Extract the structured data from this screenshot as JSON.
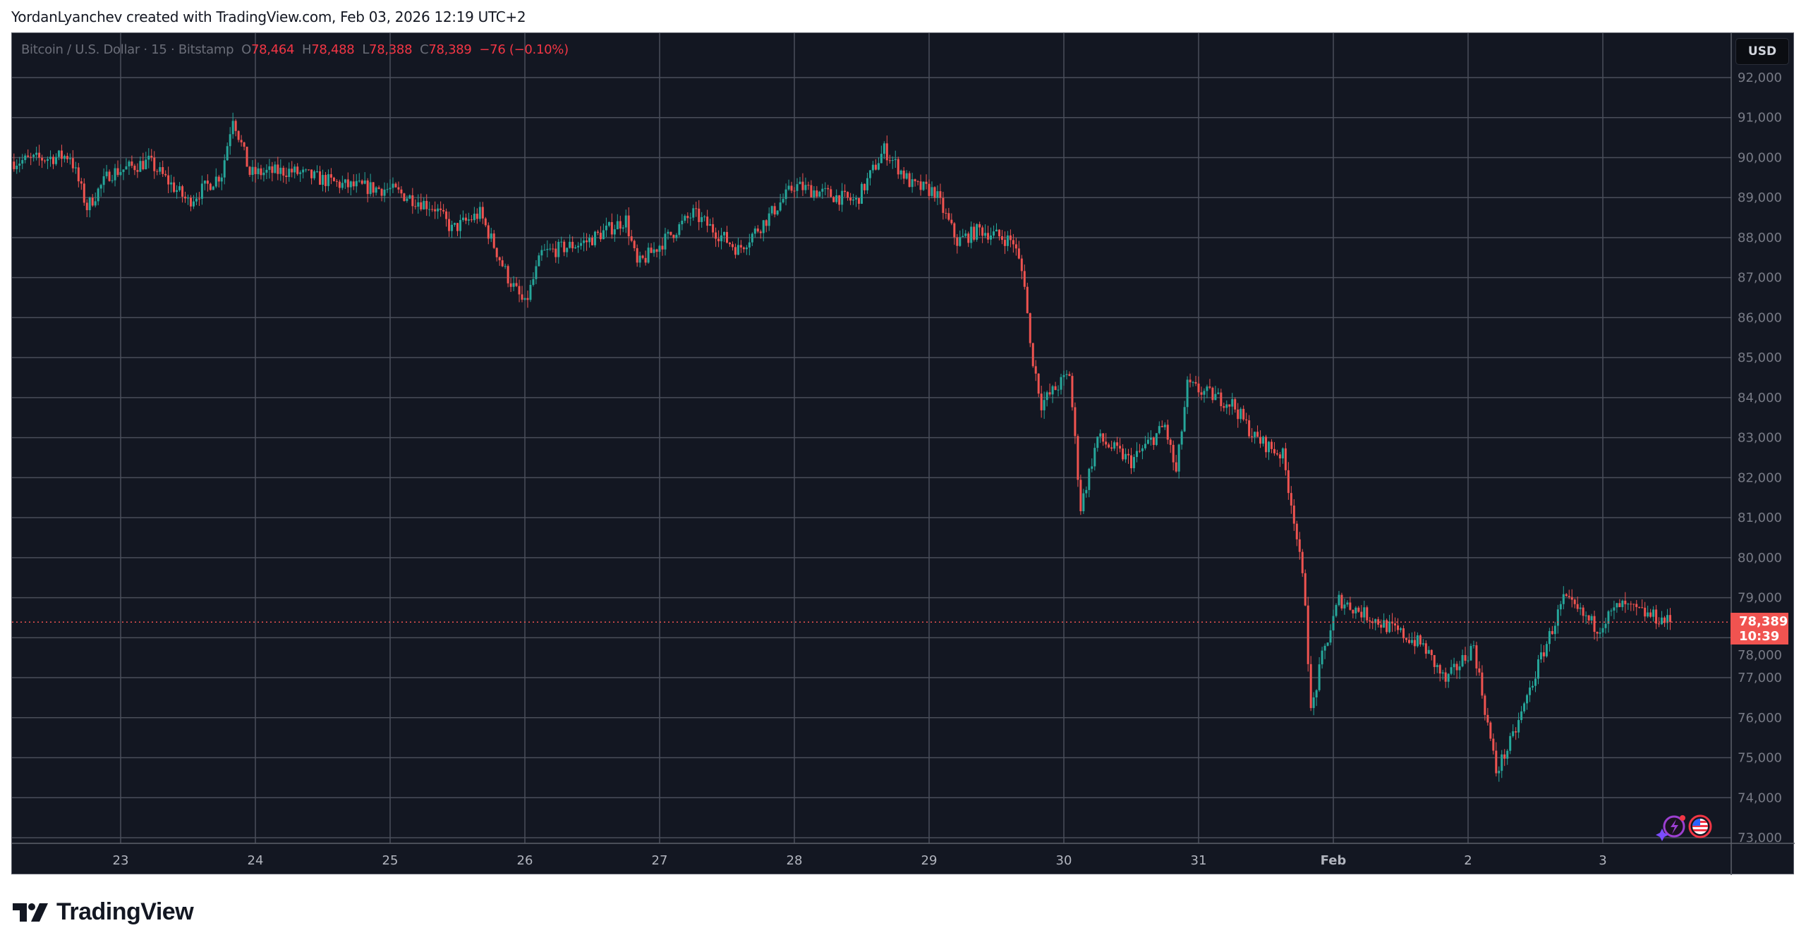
{
  "credit": "YordanLyanchev created with TradingView.com, Feb 03, 2026 12:19 UTC+2",
  "legend": {
    "symbol": "Bitcoin / U.S. Dollar · 15 · Bitstamp",
    "o_label": "O",
    "o": "78,464",
    "h_label": "H",
    "h": "78,488",
    "l_label": "L",
    "l": "78,388",
    "c_label": "C",
    "c": "78,389",
    "change": "−76 (−0.10%)"
  },
  "currency_button": "USD",
  "last_price": {
    "value": "78,389",
    "countdown": "10:39"
  },
  "logo_text": "TradingView",
  "colors": {
    "background": "#131722",
    "up": "#26a69a",
    "down": "#ef5350",
    "grid": "#434651",
    "axis_text": "#787b86"
  },
  "icons": [
    "lightning-sparkle-icon",
    "us-flag-icon"
  ],
  "chart_data": {
    "type": "candlestick",
    "interval": "15",
    "ylim": [
      73000,
      92000
    ],
    "y_ticks": [
      "92,000",
      "91,000",
      "90,000",
      "89,000",
      "88,000",
      "87,000",
      "86,000",
      "85,000",
      "84,000",
      "83,000",
      "82,000",
      "81,000",
      "80,000",
      "79,000",
      "78,000",
      "77,000",
      "76,000",
      "75,000",
      "74,000",
      "73,000"
    ],
    "x_ticks": [
      "23",
      "24",
      "25",
      "26",
      "27",
      "28",
      "29",
      "30",
      "31",
      "Feb",
      "2",
      "3"
    ],
    "grid": true,
    "approx_price_path": [
      [
        "2026-01-22T05:00",
        89900
      ],
      [
        "2026-01-22T15:00",
        90050
      ],
      [
        "2026-01-22T18:00",
        88750
      ],
      [
        "2026-01-22T22:00",
        89600
      ],
      [
        "2026-01-23T05:00",
        89900
      ],
      [
        "2026-01-23T12:00",
        88900
      ],
      [
        "2026-01-23T18:00",
        89600
      ],
      [
        "2026-01-23T20:00",
        91050
      ],
      [
        "2026-01-23T23:00",
        89600
      ],
      [
        "2026-01-24T06:00",
        89670
      ],
      [
        "2026-01-24T16:00",
        89300
      ],
      [
        "2026-01-25T00:00",
        89200
      ],
      [
        "2026-01-25T08:00",
        88750
      ],
      [
        "2026-01-25T11:00",
        88200
      ],
      [
        "2026-01-25T16:00",
        88600
      ],
      [
        "2026-01-25T21:00",
        87000
      ],
      [
        "2026-01-26T00:00",
        86300
      ],
      [
        "2026-01-26T03:00",
        87600
      ],
      [
        "2026-01-26T11:00",
        87900
      ],
      [
        "2026-01-26T18:00",
        88450
      ],
      [
        "2026-01-26T20:00",
        87300
      ],
      [
        "2026-01-27T06:00",
        88600
      ],
      [
        "2026-01-27T14:00",
        87700
      ],
      [
        "2026-01-27T19:00",
        88450
      ],
      [
        "2026-01-28T00:00",
        89300
      ],
      [
        "2026-01-28T11:00",
        88900
      ],
      [
        "2026-01-28T16:00",
        90200
      ],
      [
        "2026-01-28T21:00",
        89300
      ],
      [
        "2026-01-29T01:00",
        89150
      ],
      [
        "2026-01-29T05:00",
        87900
      ],
      [
        "2026-01-29T09:00",
        88200
      ],
      [
        "2026-01-29T15:00",
        87900
      ],
      [
        "2026-01-29T17:00",
        86900
      ],
      [
        "2026-01-29T18:00",
        85300
      ],
      [
        "2026-01-29T20:00",
        83850
      ],
      [
        "2026-01-30T01:00",
        84600
      ],
      [
        "2026-01-30T03:00",
        81250
      ],
      [
        "2026-01-30T06:00",
        83000
      ],
      [
        "2026-01-30T12:00",
        82400
      ],
      [
        "2026-01-30T18:00",
        83300
      ],
      [
        "2026-01-30T20:00",
        82100
      ],
      [
        "2026-01-30T22:00",
        84300
      ],
      [
        "2026-01-31T06:00",
        83850
      ],
      [
        "2026-01-31T10:00",
        83000
      ],
      [
        "2026-01-31T15:00",
        82550
      ],
      [
        "2026-01-31T17:00",
        81000
      ],
      [
        "2026-01-31T19:00",
        78950
      ],
      [
        "2026-01-31T20:00",
        76100
      ],
      [
        "2026-01-31T22:00",
        77500
      ],
      [
        "2026-02-01T01:00",
        78950
      ],
      [
        "2026-02-01T08:00",
        78400
      ],
      [
        "2026-02-01T16:00",
        77800
      ],
      [
        "2026-02-01T20:00",
        76900
      ],
      [
        "2026-02-02T01:00",
        77800
      ],
      [
        "2026-02-02T05:00",
        74650
      ],
      [
        "2026-02-02T08:00",
        75500
      ],
      [
        "2026-02-02T13:00",
        77500
      ],
      [
        "2026-02-02T17:00",
        78950
      ],
      [
        "2026-02-02T23:00",
        78250
      ],
      [
        "2026-02-03T03:00",
        78800
      ],
      [
        "2026-02-03T12:00",
        78389
      ]
    ],
    "last": 78389
  }
}
